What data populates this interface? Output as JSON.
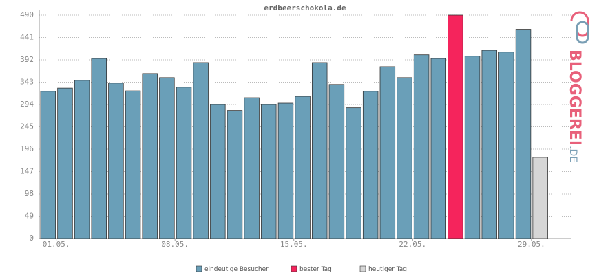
{
  "chart_data": {
    "type": "bar",
    "title": "erdbeerschokola.de",
    "brand_name": "BLOGGEREI",
    "brand_suffix": ".DE",
    "categories": [
      "01.05.",
      null,
      null,
      null,
      null,
      null,
      null,
      "08.05.",
      null,
      null,
      null,
      null,
      null,
      null,
      "15.05.",
      null,
      null,
      null,
      null,
      null,
      null,
      "22.05.",
      null,
      null,
      null,
      null,
      null,
      null,
      "29.05.",
      null
    ],
    "series": [
      {
        "name": "eindeutige Besucher",
        "color": "#6a9fb8",
        "values": [
          323,
          330,
          347,
          395,
          341,
          324,
          362,
          353,
          332,
          386,
          294,
          281,
          309,
          294,
          297,
          312,
          386,
          338,
          287,
          323,
          377,
          353,
          403,
          395,
          null,
          400,
          413,
          409,
          459,
          null
        ]
      },
      {
        "name": "bester Tag",
        "color": "#f5245c",
        "values": [
          null,
          null,
          null,
          null,
          null,
          null,
          null,
          null,
          null,
          null,
          null,
          null,
          null,
          null,
          null,
          null,
          null,
          null,
          null,
          null,
          null,
          null,
          null,
          null,
          490,
          null,
          null,
          null,
          null,
          null
        ]
      },
      {
        "name": "heutiger Tag",
        "color": "#d6d6d6",
        "values": [
          null,
          null,
          null,
          null,
          null,
          null,
          null,
          null,
          null,
          null,
          null,
          null,
          null,
          null,
          null,
          null,
          null,
          null,
          null,
          null,
          null,
          null,
          null,
          null,
          null,
          null,
          null,
          null,
          null,
          178
        ]
      }
    ],
    "ylim": [
      0,
      490
    ],
    "yticks": [
      0,
      49,
      98,
      147,
      196,
      245,
      294,
      343,
      392,
      441,
      490
    ],
    "grid": true
  }
}
